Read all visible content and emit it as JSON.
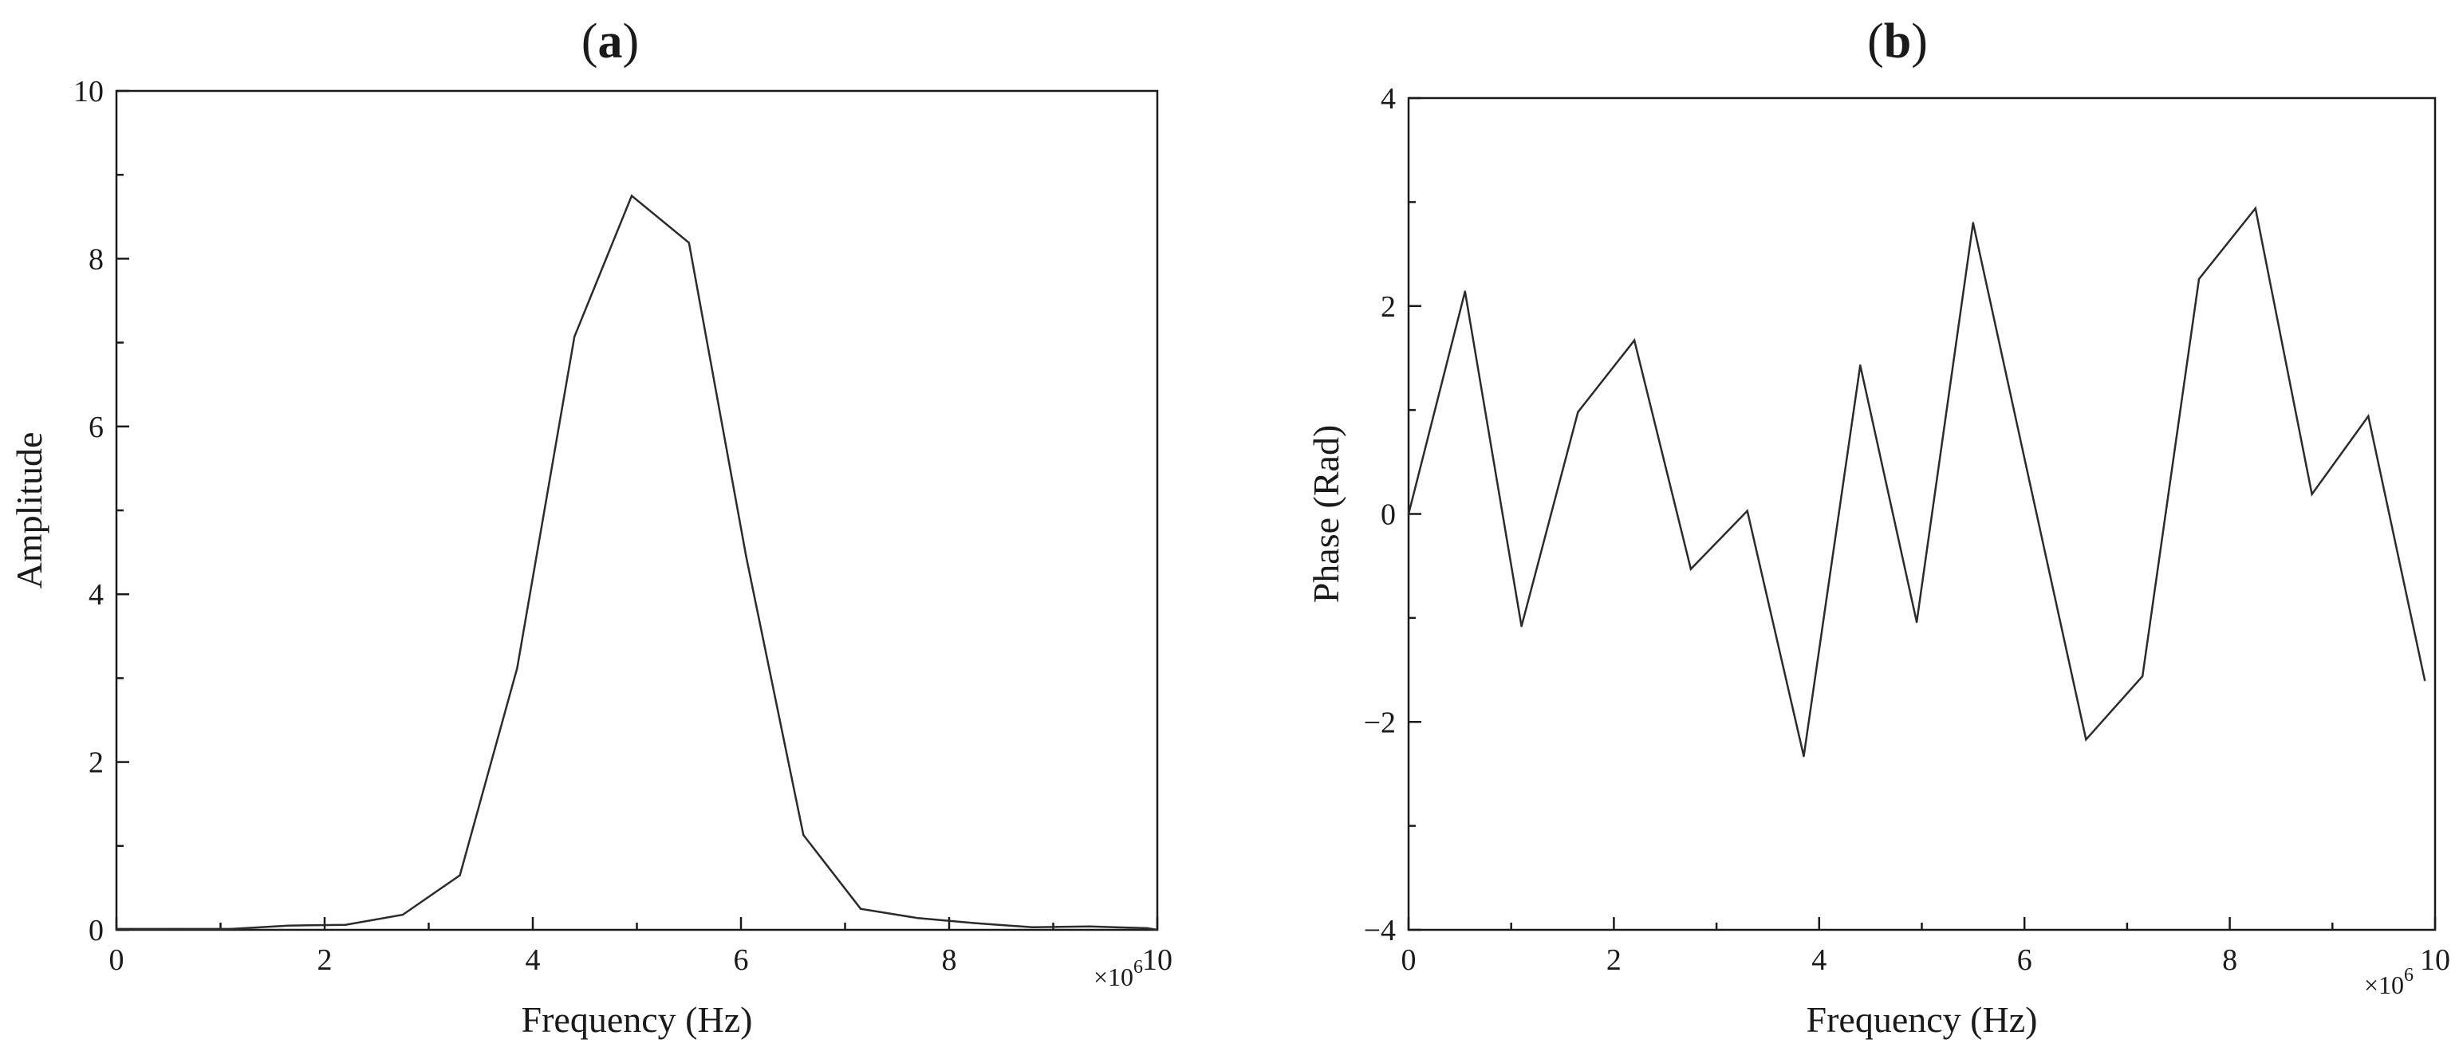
{
  "chart_data": [
    {
      "type": "line",
      "panel_label": "a",
      "xlabel": "Frequency (Hz)",
      "ylabel": "Amplitude",
      "x_multiplier": "×10",
      "x_multiplier_exp": "6",
      "xlim": [
        0,
        10
      ],
      "ylim": [
        0,
        10
      ],
      "x_ticks": [
        0,
        2,
        4,
        6,
        8,
        10
      ],
      "y_ticks": [
        0,
        2,
        4,
        6,
        8,
        10
      ],
      "x_tick_labels": [
        "0",
        "2",
        "4",
        "6",
        "8",
        "10"
      ],
      "y_tick_labels": [
        "0",
        "2",
        "4",
        "6",
        "8",
        "10"
      ],
      "grid": false,
      "series": [
        {
          "x": [
            0,
            0.55,
            1.1,
            1.65,
            2.2,
            2.75,
            3.3,
            3.85,
            4.4,
            4.95,
            5.5,
            6.05,
            6.6,
            7.15,
            7.7,
            8.25,
            8.8,
            9.35,
            9.9,
            10
          ],
          "y": [
            0.01,
            0.01,
            0.01,
            0.05,
            0.06,
            0.18,
            0.65,
            3.12,
            7.07,
            8.75,
            8.19,
            4.45,
            1.13,
            0.25,
            0.14,
            0.08,
            0.03,
            0.04,
            0.02,
            0.0
          ]
        }
      ]
    },
    {
      "type": "line",
      "panel_label": "b",
      "xlabel": "Frequency (Hz)",
      "ylabel": "Phase (Rad)",
      "x_multiplier": "×10",
      "x_multiplier_exp": "6",
      "xlim": [
        0,
        10
      ],
      "ylim": [
        -4,
        4
      ],
      "x_ticks": [
        0,
        2,
        4,
        6,
        8,
        10
      ],
      "y_ticks": [
        -4,
        -2,
        0,
        2,
        4
      ],
      "x_tick_labels": [
        "0",
        "2",
        "4",
        "6",
        "8",
        "10"
      ],
      "y_tick_labels": [
        "−4",
        "−2",
        "0",
        "2",
        "4"
      ],
      "grid": false,
      "series": [
        {
          "x": [
            0,
            0.55,
            1.1,
            1.65,
            2.2,
            2.75,
            3.3,
            3.85,
            4.4,
            4.95,
            5.5,
            6.05,
            6.6,
            7.15,
            7.7,
            8.25,
            8.8,
            9.35,
            9.9
          ],
          "y": [
            0.0,
            2.14,
            -1.08,
            0.98,
            1.67,
            -0.53,
            0.03,
            -2.33,
            1.43,
            -1.04,
            2.8,
            0.31,
            -2.17,
            -1.56,
            2.26,
            2.94,
            0.19,
            0.94,
            -1.6
          ]
        }
      ]
    }
  ]
}
